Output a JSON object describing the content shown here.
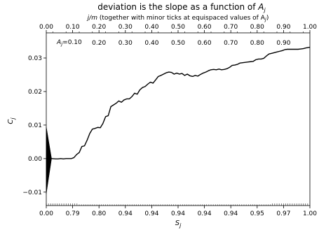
{
  "chart_data": {
    "type": "line",
    "title": "deviation is the slope as a function of A_j",
    "title_prefix": "deviation is the slope as a function of ",
    "title_var": "A",
    "title_sub": "j",
    "top_axis_label_prefix": "j/m",
    "top_axis_label_rest": " (together with minor ticks at equispaced values of A",
    "top_axis_label_sub": "j",
    "top_axis_label_suffix": ")",
    "xlabel_var": "S",
    "xlabel_sub": "j",
    "ylabel_var": "C",
    "ylabel_sub": "j",
    "inner_annotation_var": "A",
    "inner_annotation_sub": "j",
    "inner_annotation_rest": "=0.10",
    "xlim": [
      0,
      1
    ],
    "ylim": [
      -0.014,
      0.0375
    ],
    "grid": false,
    "legend": "none",
    "line_color": "#000000",
    "top_ticks": {
      "positions": [
        0.0,
        0.1,
        0.2,
        0.3,
        0.4,
        0.5,
        0.6,
        0.7,
        0.8,
        0.9,
        1.0
      ],
      "labels": [
        "0.00",
        "0.10",
        "0.20",
        "0.30",
        "0.40",
        "0.50",
        "0.60",
        "0.70",
        "0.80",
        "0.90",
        "1.00"
      ]
    },
    "inner_top_ticks": {
      "positions": [
        0.2,
        0.3,
        0.4,
        0.5,
        0.6,
        0.7,
        0.8,
        0.9
      ],
      "labels": [
        "0.20",
        "0.30",
        "0.40",
        "0.50",
        "0.60",
        "0.70",
        "0.80",
        "0.90"
      ]
    },
    "bottom_ticks": {
      "positions": [
        0.0,
        0.1,
        0.2,
        0.3,
        0.4,
        0.5,
        0.6,
        0.7,
        0.8,
        0.9,
        1.0
      ],
      "labels": [
        "0.00",
        "0.79",
        "0.80",
        "0.94",
        "0.94",
        "0.94",
        "0.94",
        "0.94",
        "0.95",
        "0.97",
        "1.00"
      ]
    },
    "y_ticks": {
      "positions": [
        -0.01,
        0.0,
        0.01,
        0.02,
        0.03
      ],
      "labels": [
        "−0.01",
        "0.00",
        "0.01",
        "0.02",
        "0.03"
      ]
    },
    "series": [
      {
        "x": [
          0.0,
          0.02,
          0.035,
          0.045,
          0.055,
          0.065,
          0.075,
          0.085,
          0.095,
          0.105,
          0.115,
          0.125,
          0.135,
          0.145,
          0.155,
          0.165,
          0.175,
          0.185,
          0.195,
          0.205,
          0.215,
          0.225,
          0.235,
          0.245,
          0.255,
          0.265,
          0.275,
          0.285,
          0.295,
          0.305,
          0.315,
          0.325,
          0.335,
          0.345,
          0.355,
          0.365,
          0.375,
          0.385,
          0.395,
          0.405,
          0.415,
          0.425,
          0.435,
          0.445,
          0.455,
          0.465,
          0.475,
          0.485,
          0.495,
          0.505,
          0.515,
          0.525,
          0.535,
          0.545,
          0.555,
          0.565,
          0.575,
          0.585,
          0.595,
          0.605,
          0.615,
          0.625,
          0.635,
          0.645,
          0.655,
          0.665,
          0.675,
          0.685,
          0.695,
          0.705,
          0.715,
          0.725,
          0.735,
          0.745,
          0.755,
          0.765,
          0.775,
          0.785,
          0.795,
          0.805,
          0.815,
          0.825,
          0.835,
          0.845,
          0.855,
          0.865,
          0.875,
          0.885,
          0.895,
          0.905,
          0.915,
          0.925,
          0.935,
          0.945,
          0.955,
          0.965,
          0.975,
          0.985,
          1.0
        ],
        "y": [
          0.0,
          0.0,
          -0.0001,
          -0.0001,
          0.0,
          -0.0001,
          0.0,
          0.0,
          0.0,
          0.0003,
          0.0012,
          0.0018,
          0.0036,
          0.0038,
          0.0055,
          0.0075,
          0.0088,
          0.009,
          0.0093,
          0.0092,
          0.0105,
          0.0125,
          0.0128,
          0.0155,
          0.016,
          0.0165,
          0.0172,
          0.0168,
          0.0175,
          0.0178,
          0.0178,
          0.0185,
          0.0195,
          0.0192,
          0.0205,
          0.0212,
          0.0215,
          0.0222,
          0.0228,
          0.0225,
          0.0235,
          0.0245,
          0.0248,
          0.0252,
          0.0256,
          0.0258,
          0.0257,
          0.0252,
          0.0255,
          0.0252,
          0.0254,
          0.0248,
          0.0252,
          0.0247,
          0.0245,
          0.0248,
          0.0246,
          0.0251,
          0.0255,
          0.0258,
          0.0262,
          0.0265,
          0.0266,
          0.0265,
          0.0267,
          0.0265,
          0.0266,
          0.0268,
          0.0272,
          0.0278,
          0.0279,
          0.0281,
          0.0285,
          0.0286,
          0.0287,
          0.0288,
          0.0289,
          0.029,
          0.0295,
          0.0297,
          0.0297,
          0.0299,
          0.0306,
          0.0312,
          0.0314,
          0.0316,
          0.0318,
          0.032,
          0.0322,
          0.0325,
          0.0326,
          0.0326,
          0.0326,
          0.0326,
          0.0326,
          0.0327,
          0.0328,
          0.033,
          0.0332
        ]
      }
    ],
    "spike": {
      "x_from": 0.0,
      "x_to": 0.02,
      "y_top": 0.0095,
      "y_bottom": -0.0105
    }
  }
}
